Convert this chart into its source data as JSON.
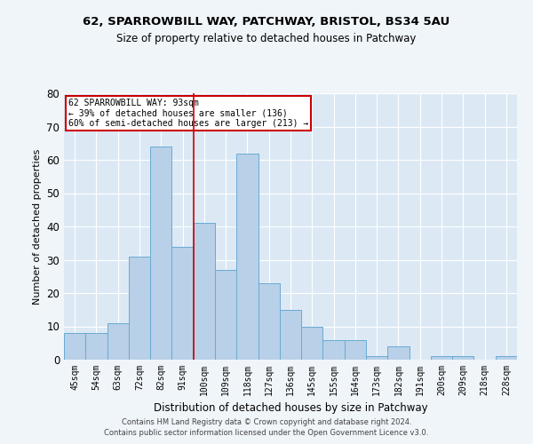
{
  "title1": "62, SPARROWBILL WAY, PATCHWAY, BRISTOL, BS34 5AU",
  "title2": "Size of property relative to detached houses in Patchway",
  "xlabel": "Distribution of detached houses by size in Patchway",
  "ylabel": "Number of detached properties",
  "categories": [
    "45sqm",
    "54sqm",
    "63sqm",
    "72sqm",
    "82sqm",
    "91sqm",
    "100sqm",
    "109sqm",
    "118sqm",
    "127sqm",
    "136sqm",
    "145sqm",
    "155sqm",
    "164sqm",
    "173sqm",
    "182sqm",
    "191sqm",
    "200sqm",
    "209sqm",
    "218sqm",
    "228sqm"
  ],
  "values": [
    8,
    8,
    11,
    31,
    64,
    34,
    41,
    27,
    62,
    23,
    15,
    10,
    6,
    6,
    1,
    4,
    0,
    1,
    1,
    0,
    1
  ],
  "bar_color": "#b8d0e8",
  "bar_edge_color": "#6aaad4",
  "vline_x_idx": 5.5,
  "vline_color": "#cc0000",
  "annotation_line1": "62 SPARROWBILL WAY: 93sqm",
  "annotation_line2": "← 39% of detached houses are smaller (136)",
  "annotation_line3": "60% of semi-detached houses are larger (213) →",
  "annotation_box_color": "#cc0000",
  "ylim": [
    0,
    80
  ],
  "yticks": [
    0,
    10,
    20,
    30,
    40,
    50,
    60,
    70,
    80
  ],
  "plot_bg_color": "#dce9f5",
  "fig_bg_color": "#f0f5fa",
  "footer1": "Contains HM Land Registry data © Crown copyright and database right 2024.",
  "footer2": "Contains public sector information licensed under the Open Government Licence v3.0."
}
